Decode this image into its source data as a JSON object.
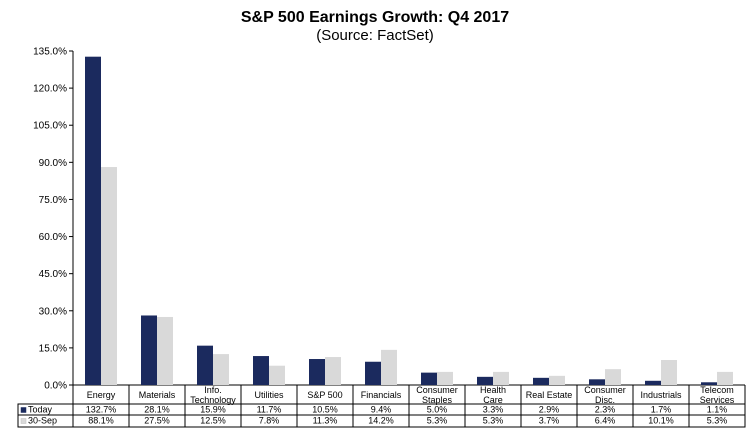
{
  "chart_data": {
    "type": "bar",
    "title": "S&P 500 Earnings Growth: Q4 2017",
    "subtitle": "(Source: FactSet)",
    "categories": [
      [
        "Energy"
      ],
      [
        "Materials"
      ],
      [
        "Info.",
        "Technology"
      ],
      [
        "Utilities"
      ],
      [
        "S&P 500"
      ],
      [
        "Financials"
      ],
      [
        "Consumer",
        "Staples"
      ],
      [
        "Health",
        "Care"
      ],
      [
        "Real Estate"
      ],
      [
        "Consumer",
        "Disc."
      ],
      [
        "Industrials"
      ],
      [
        "Telecom",
        "Services"
      ]
    ],
    "series": [
      {
        "name": "Today",
        "color": "#1b2a5e",
        "values": [
          132.7,
          28.1,
          15.9,
          11.7,
          10.5,
          9.4,
          5.0,
          3.3,
          2.9,
          2.3,
          1.7,
          1.1
        ],
        "labels": [
          "132.7%",
          "28.1%",
          "15.9%",
          "11.7%",
          "10.5%",
          "9.4%",
          "5.0%",
          "3.3%",
          "2.9%",
          "2.3%",
          "1.7%",
          "1.1%"
        ]
      },
      {
        "name": "30-Sep",
        "color": "#d9d9d9",
        "values": [
          88.1,
          27.5,
          12.5,
          7.8,
          11.3,
          14.2,
          5.3,
          5.3,
          3.7,
          6.4,
          10.1,
          5.3
        ],
        "labels": [
          "88.1%",
          "27.5%",
          "12.5%",
          "7.8%",
          "11.3%",
          "14.2%",
          "5.3%",
          "5.3%",
          "3.7%",
          "6.4%",
          "10.1%",
          "5.3%"
        ]
      }
    ],
    "ylim": [
      0,
      135
    ],
    "yticks": [
      0,
      15,
      30,
      45,
      60,
      75,
      90,
      105,
      120,
      135
    ],
    "ytick_labels": [
      "0.0%",
      "15.0%",
      "30.0%",
      "45.0%",
      "60.0%",
      "75.0%",
      "90.0%",
      "105.0%",
      "120.0%",
      "135.0%"
    ],
    "grid": false,
    "legend": "data-table"
  }
}
